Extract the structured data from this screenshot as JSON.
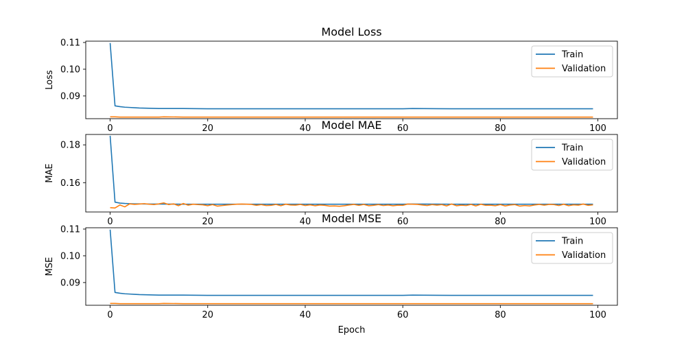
{
  "chart_data": [
    {
      "type": "line",
      "title": "Model Loss",
      "xlabel": "",
      "ylabel": "Loss",
      "xlim": [
        -5,
        104
      ],
      "ylim": [
        0.0815,
        0.1105
      ],
      "xticks": [
        0,
        20,
        40,
        60,
        80,
        100
      ],
      "xtick_labels": [
        "0",
        "20",
        "40",
        "60",
        "80",
        "100"
      ],
      "yticks": [
        0.09,
        0.1,
        0.11
      ],
      "ytick_labels": [
        "0.09",
        "0.10",
        "0.11"
      ],
      "grid": false,
      "legend": "top-right",
      "series": [
        {
          "name": "Train",
          "color": "#1f77b4",
          "x": [
            0,
            1,
            2,
            3,
            4,
            5,
            6,
            8,
            10,
            15,
            20,
            30,
            40,
            50,
            60,
            62,
            70,
            80,
            90,
            99
          ],
          "y": [
            0.1098,
            0.0863,
            0.086,
            0.0858,
            0.0857,
            0.0856,
            0.0855,
            0.0854,
            0.0853,
            0.0853,
            0.0852,
            0.0852,
            0.0852,
            0.0852,
            0.0852,
            0.0853,
            0.0852,
            0.0852,
            0.0852,
            0.0852
          ]
        },
        {
          "name": "Validation",
          "color": "#ff7f0e",
          "x": [
            0,
            1,
            2,
            5,
            10,
            11,
            15,
            20,
            30,
            40,
            50,
            60,
            70,
            80,
            90,
            99
          ],
          "y": [
            0.0822,
            0.0822,
            0.0821,
            0.0821,
            0.0821,
            0.0822,
            0.0821,
            0.0821,
            0.0821,
            0.0821,
            0.0821,
            0.0821,
            0.0821,
            0.0821,
            0.0821,
            0.0821
          ]
        }
      ]
    },
    {
      "type": "line",
      "title": "Model MAE",
      "xlabel": "",
      "ylabel": "MAE",
      "xlim": [
        -5,
        104
      ],
      "ylim": [
        0.1445,
        0.1855
      ],
      "xticks": [
        0,
        20,
        40,
        60,
        80,
        100
      ],
      "xtick_labels": [
        "0",
        "20",
        "40",
        "60",
        "80",
        "100"
      ],
      "yticks": [
        0.16,
        0.18
      ],
      "ytick_labels": [
        "0.16",
        "0.18"
      ],
      "grid": false,
      "legend": "top-right",
      "series": [
        {
          "name": "Train",
          "color": "#1f77b4",
          "x": [
            0,
            1,
            2,
            3,
            4,
            5,
            6,
            8,
            10,
            15,
            20,
            30,
            40,
            50,
            60,
            62,
            70,
            80,
            90,
            99
          ],
          "y": [
            0.1848,
            0.1497,
            0.1492,
            0.149,
            0.1489,
            0.1488,
            0.1488,
            0.1487,
            0.1487,
            0.1486,
            0.1486,
            0.1486,
            0.1486,
            0.1486,
            0.1486,
            0.1487,
            0.1486,
            0.1486,
            0.1486,
            0.1486
          ]
        },
        {
          "name": "Validation",
          "color": "#ff7f0e",
          "x": [
            0,
            1,
            2,
            3,
            4,
            5,
            6,
            7,
            8,
            9,
            10,
            11,
            12,
            13,
            14,
            15,
            16,
            17,
            18,
            19,
            20,
            21,
            22,
            23,
            24,
            25,
            26,
            27,
            28,
            29,
            30,
            31,
            32,
            33,
            34,
            35,
            36,
            37,
            38,
            39,
            40,
            41,
            42,
            43,
            44,
            45,
            46,
            47,
            48,
            49,
            50,
            51,
            52,
            53,
            54,
            55,
            56,
            57,
            58,
            59,
            60,
            61,
            62,
            63,
            64,
            65,
            66,
            67,
            68,
            69,
            70,
            71,
            72,
            73,
            74,
            75,
            76,
            77,
            78,
            79,
            80,
            81,
            82,
            83,
            84,
            85,
            86,
            87,
            88,
            89,
            90,
            91,
            92,
            93,
            94,
            95,
            96,
            97,
            98,
            99
          ],
          "y": [
            0.1468,
            0.1466,
            0.1482,
            0.1472,
            0.1488,
            0.1485,
            0.1487,
            0.1489,
            0.1486,
            0.1484,
            0.1488,
            0.1493,
            0.1484,
            0.1488,
            0.1478,
            0.149,
            0.1481,
            0.1486,
            0.1484,
            0.1483,
            0.1478,
            0.1484,
            0.1476,
            0.1479,
            0.1482,
            0.1484,
            0.1486,
            0.1487,
            0.1486,
            0.1485,
            0.148,
            0.1484,
            0.1479,
            0.148,
            0.1485,
            0.1478,
            0.1486,
            0.1482,
            0.1481,
            0.1485,
            0.1479,
            0.1483,
            0.1478,
            0.1482,
            0.148,
            0.1476,
            0.1477,
            0.1475,
            0.1478,
            0.1482,
            0.1485,
            0.148,
            0.1485,
            0.1478,
            0.148,
            0.1484,
            0.1479,
            0.1482,
            0.1478,
            0.1481,
            0.148,
            0.1487,
            0.1486,
            0.1485,
            0.1482,
            0.1479,
            0.1484,
            0.1481,
            0.1484,
            0.1477,
            0.1487,
            0.1478,
            0.1481,
            0.1479,
            0.1485,
            0.1477,
            0.1486,
            0.148,
            0.1481,
            0.1478,
            0.1484,
            0.1477,
            0.1482,
            0.1484,
            0.1476,
            0.1479,
            0.1477,
            0.1482,
            0.1485,
            0.1481,
            0.1485,
            0.1484,
            0.1479,
            0.1486,
            0.1478,
            0.1483,
            0.1481,
            0.1487,
            0.148,
            0.1483
          ]
        }
      ]
    },
    {
      "type": "line",
      "title": "Model MSE",
      "xlabel": "Epoch",
      "ylabel": "MSE",
      "xlim": [
        -5,
        104
      ],
      "ylim": [
        0.0815,
        0.1105
      ],
      "xticks": [
        0,
        20,
        40,
        60,
        80,
        100
      ],
      "xtick_labels": [
        "0",
        "20",
        "40",
        "60",
        "80",
        "100"
      ],
      "yticks": [
        0.09,
        0.1,
        0.11
      ],
      "ytick_labels": [
        "0.09",
        "0.10",
        "0.11"
      ],
      "grid": false,
      "legend": "top-right",
      "series": [
        {
          "name": "Train",
          "color": "#1f77b4",
          "x": [
            0,
            1,
            2,
            3,
            4,
            5,
            6,
            8,
            10,
            15,
            20,
            30,
            40,
            50,
            60,
            62,
            70,
            80,
            90,
            99
          ],
          "y": [
            0.1098,
            0.0863,
            0.086,
            0.0858,
            0.0857,
            0.0856,
            0.0855,
            0.0854,
            0.0853,
            0.0853,
            0.0852,
            0.0852,
            0.0852,
            0.0852,
            0.0852,
            0.0853,
            0.0852,
            0.0852,
            0.0852,
            0.0852
          ]
        },
        {
          "name": "Validation",
          "color": "#ff7f0e",
          "x": [
            0,
            1,
            2,
            5,
            10,
            11,
            15,
            20,
            30,
            40,
            50,
            60,
            70,
            80,
            90,
            99
          ],
          "y": [
            0.0822,
            0.0822,
            0.0821,
            0.0821,
            0.0821,
            0.0822,
            0.0821,
            0.0821,
            0.0821,
            0.0821,
            0.0821,
            0.0821,
            0.0821,
            0.0821,
            0.0821,
            0.0821
          ]
        }
      ]
    }
  ]
}
